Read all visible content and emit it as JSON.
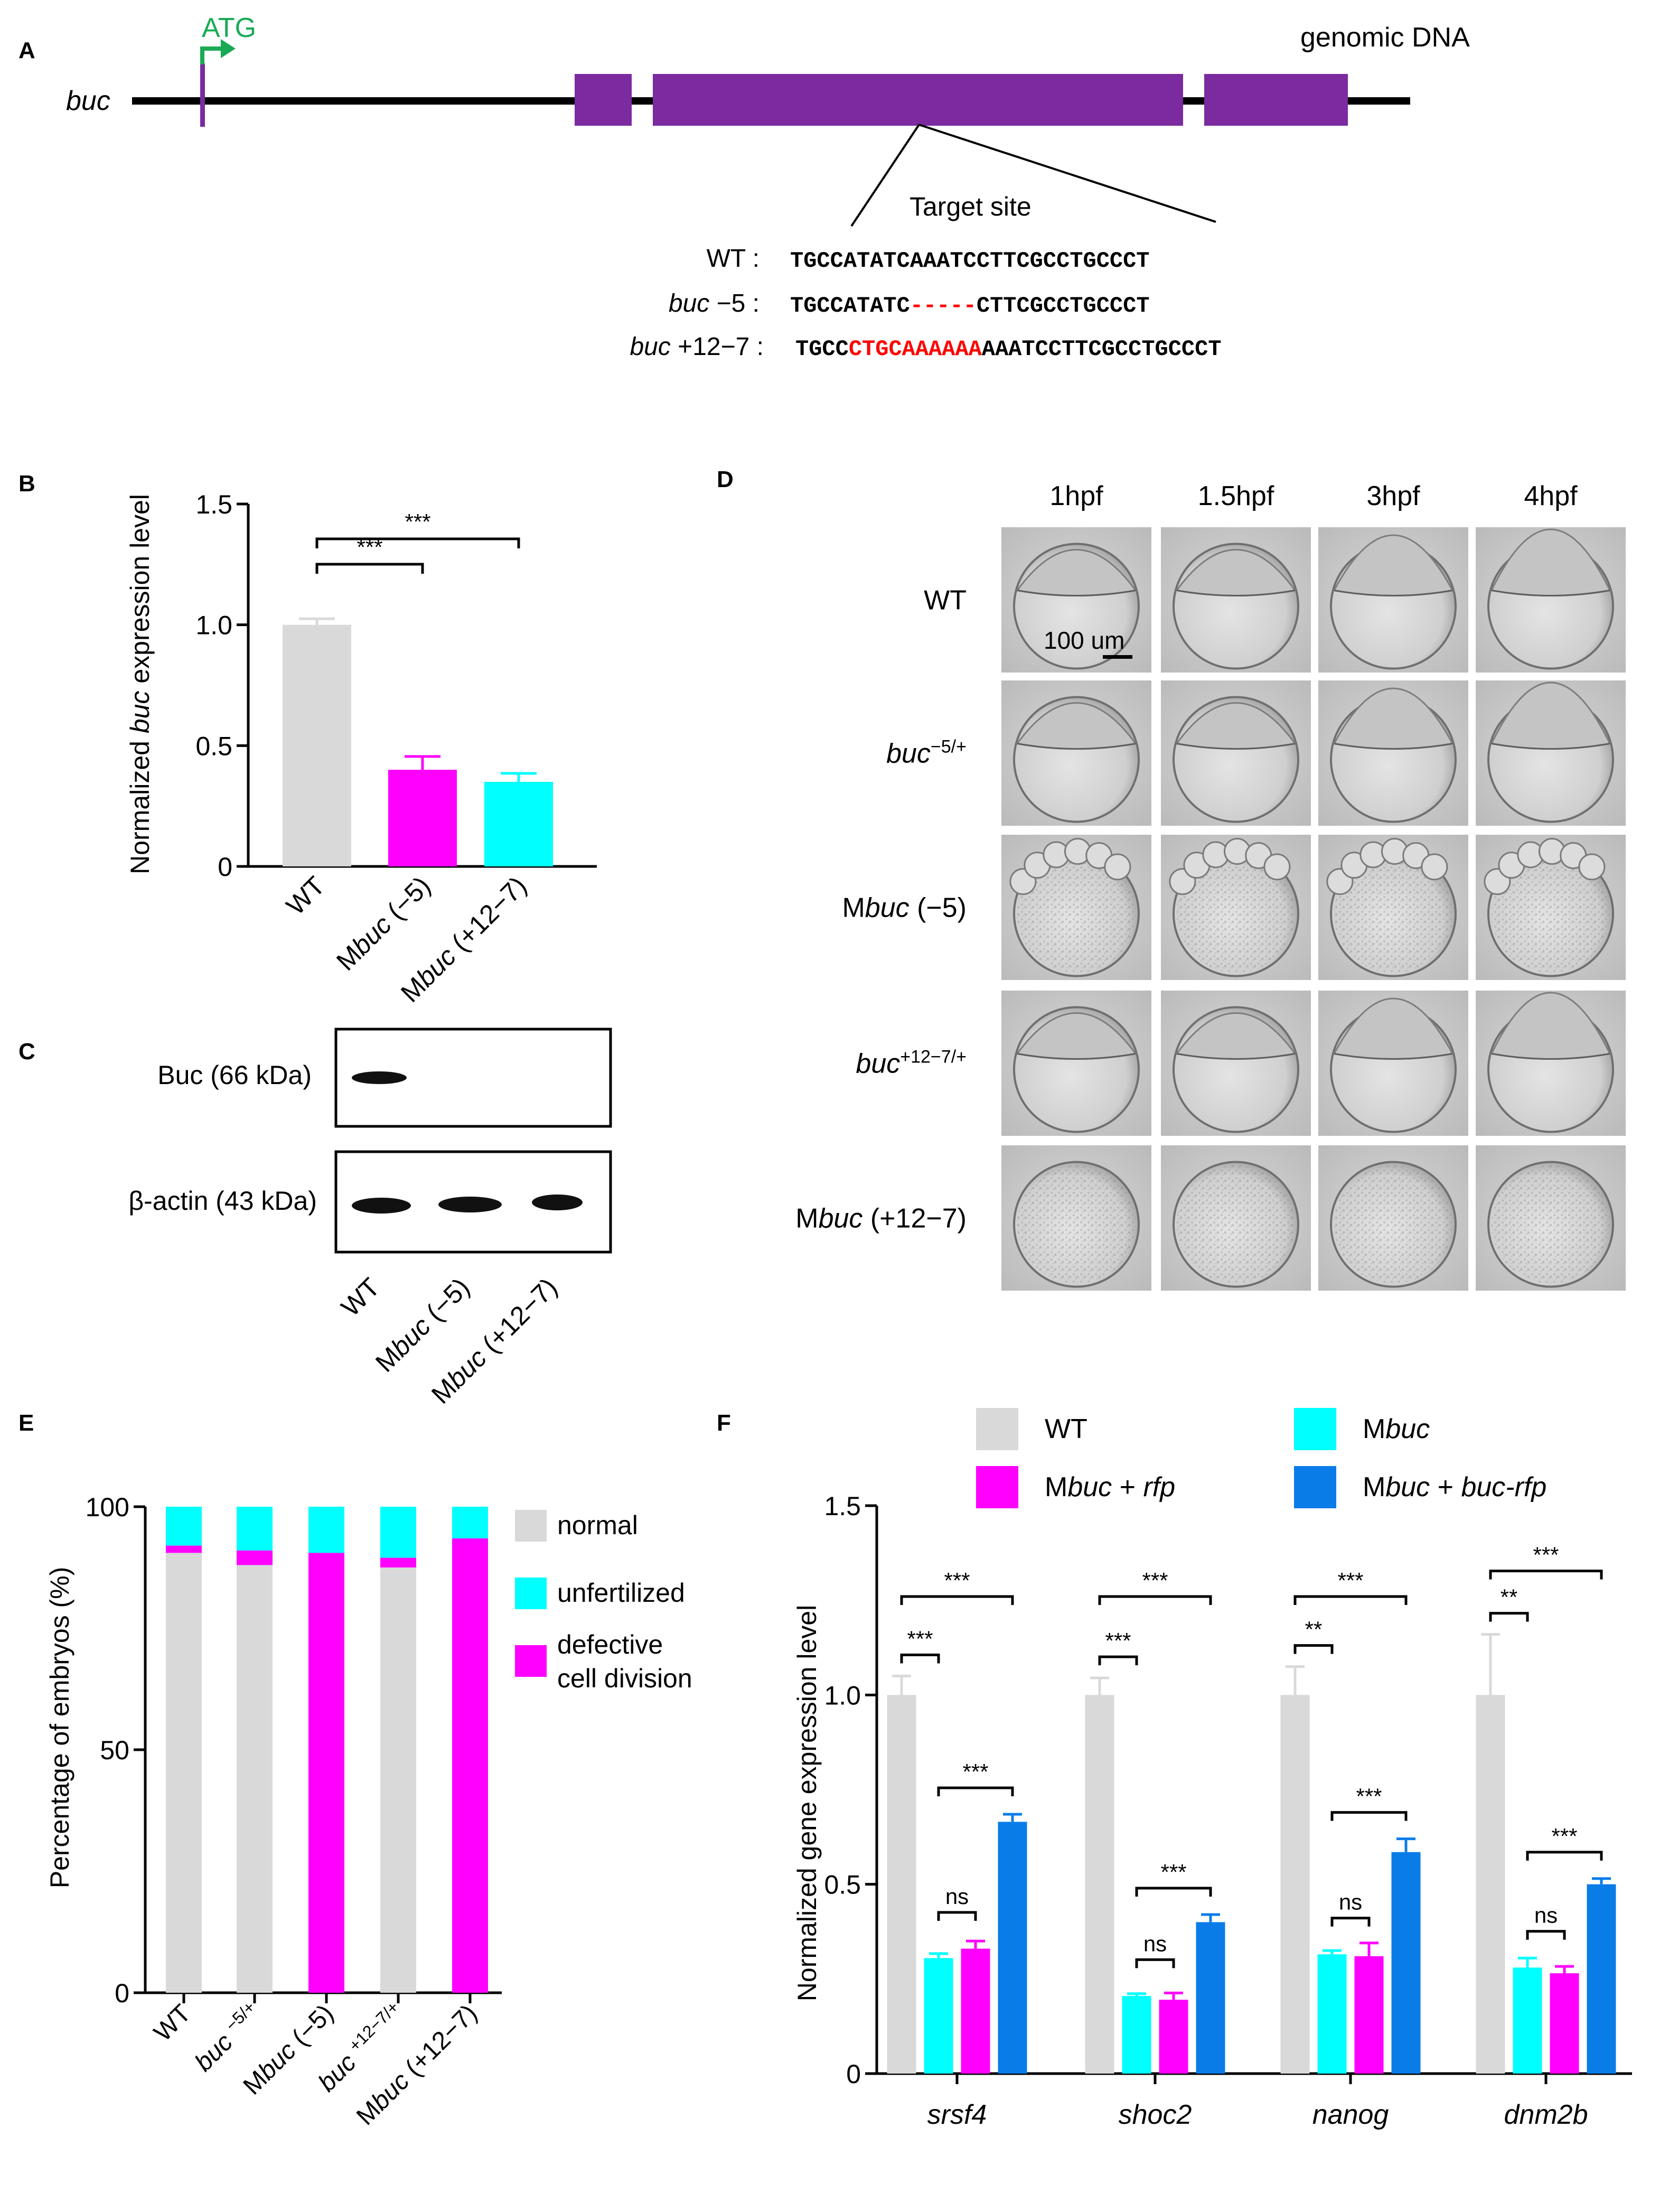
{
  "panels": {
    "A": "A",
    "B": "B",
    "C": "C",
    "D": "D",
    "E": "E",
    "F": "F"
  },
  "colors": {
    "wt": "#d9d9d9",
    "mbuc": "#ff00ff",
    "rescue_cyan": "#00ffff",
    "blue": "#0a7ce8",
    "exon": "#7b2aa0",
    "atg": "#1aaa55",
    "del": "#ff0000",
    "black": "#000000"
  },
  "panelA": {
    "gene_label": "buc",
    "atg_label": "ATG",
    "genomic_label": "genomic DNA",
    "target_label": "Target site",
    "rows": [
      {
        "label": "WT :",
        "seq_pre": "TGCCATATCAAATCCTTCGCCTGCCCT",
        "seq_mut": "",
        "seq_post": ""
      },
      {
        "label_gene": "buc",
        "label_rest": " −5 :",
        "seq_pre": "TGCCATATC",
        "seq_mut": "-----",
        "seq_post": "CTTCGCCTGCCCT"
      },
      {
        "label_gene": "buc",
        "label_rest": " +12−7 :",
        "seq_pre": "TGCC",
        "seq_mut": "CTGCAAAAAA",
        "seq_post": "AAATCCTTCGCCTGCCCT"
      }
    ]
  },
  "chart_data": [
    {
      "id": "B",
      "type": "bar",
      "ylabel_pre": "Normalized ",
      "ylabel_gene": "buc",
      "ylabel_post": " expression level",
      "ylim": [
        0,
        1.5
      ],
      "yticks": [
        "0",
        "0.5",
        "1.0",
        "1.5"
      ],
      "categories": [
        "WT",
        "Mbuc (−5)",
        "Mbuc (+12−7)"
      ],
      "cat_parts": [
        {
          "pre": "",
          "gene": "WT",
          "post": ""
        },
        {
          "pre": "M",
          "gene": "buc",
          "post": " (−5)"
        },
        {
          "pre": "M",
          "gene": "buc",
          "post": " (+12−7)"
        }
      ],
      "values": [
        1.0,
        0.4,
        0.35
      ],
      "errors": [
        0.025,
        0.055,
        0.035
      ],
      "significance": [
        {
          "from": 0,
          "to": 1,
          "label": "***"
        },
        {
          "from": 0,
          "to": 2,
          "label": "***"
        }
      ]
    },
    {
      "id": "E",
      "type": "stacked-bar",
      "ylabel": "Percentage of embryos (%)",
      "ylim": [
        0,
        100
      ],
      "yticks": [
        "0",
        "50",
        "100"
      ],
      "categories": [
        "WT",
        "buc −5/+",
        "Mbuc (−5)",
        "buc +12−7/+",
        "Mbuc (+12−7)"
      ],
      "cat_parts": [
        {
          "pre": "WT",
          "sup": ""
        },
        {
          "pre": "buc ",
          "sup": "−5/+"
        },
        {
          "pre": "Mbuc (−5)",
          "sup": ""
        },
        {
          "pre": "buc ",
          "sup": "+12−7/+"
        },
        {
          "pre": "Mbuc (+12−7)",
          "sup": ""
        }
      ],
      "series": [
        {
          "name": "normal",
          "values": [
            90.5,
            88,
            0,
            87.5,
            0
          ]
        },
        {
          "name": "defective cell division",
          "values": [
            1.5,
            3,
            90.5,
            2,
            93.5
          ]
        },
        {
          "name": "unfertilized",
          "values": [
            8,
            9,
            9.5,
            10.5,
            6.5
          ]
        }
      ],
      "legend": [
        "normal",
        "unfertilized",
        "defective cell division"
      ]
    },
    {
      "id": "F",
      "type": "grouped-bar",
      "ylabel": "Normalized gene expression level",
      "ylim": [
        0,
        1.5
      ],
      "yticks": [
        "0",
        "0.5",
        "1.0",
        "1.5"
      ],
      "categories": [
        "srsf4",
        "shoc2",
        "nanog",
        "dnm2b"
      ],
      "legend": [
        {
          "pre": "WT",
          "gene": "",
          "post": ""
        },
        {
          "pre": "M",
          "gene": "buc",
          "post": ""
        },
        {
          "pre": "M",
          "gene": "buc",
          "post": " + ",
          "gene2": "rfp"
        },
        {
          "pre": "M",
          "gene": "buc",
          "post": " + ",
          "gene2": "buc-rfp"
        }
      ],
      "series": [
        {
          "name": "WT",
          "values": [
            1.0,
            1.0,
            1.0,
            1.0
          ],
          "errors": [
            0.05,
            0.045,
            0.075,
            0.16
          ]
        },
        {
          "name": "Mbuc",
          "values": [
            0.305,
            0.205,
            0.315,
            0.28
          ],
          "errors": [
            0.012,
            0.006,
            0.01,
            0.025
          ]
        },
        {
          "name": "Mbuc + rfp",
          "values": [
            0.33,
            0.195,
            0.31,
            0.265
          ],
          "errors": [
            0.02,
            0.018,
            0.035,
            0.018
          ]
        },
        {
          "name": "Mbuc + buc-rfp",
          "values": [
            0.665,
            0.4,
            0.585,
            0.5
          ],
          "errors": [
            0.02,
            0.02,
            0.035,
            0.015
          ]
        }
      ],
      "significance": [
        {
          "label": "***"
        },
        {
          "label": "***"
        },
        {
          "label": "***"
        },
        {
          "label": "ns"
        },
        {
          "label": "***"
        },
        {
          "label": "***"
        },
        {
          "label": "***"
        },
        {
          "label": "ns"
        },
        {
          "label": "**"
        },
        {
          "label": "***"
        },
        {
          "label": "***"
        },
        {
          "label": "ns"
        },
        {
          "label": "**"
        },
        {
          "label": "***"
        },
        {
          "label": "***"
        },
        {
          "label": "ns"
        }
      ]
    }
  ],
  "panelC": {
    "rows": [
      {
        "label": "Buc (66 kDa)"
      },
      {
        "label": "β-actin (43 kDa)"
      }
    ],
    "lanes": [
      {
        "pre": "WT",
        "gene": "",
        "post": ""
      },
      {
        "pre": "M",
        "gene": "buc",
        "post": " (−5)"
      },
      {
        "pre": "M",
        "gene": "buc",
        "post": " (+12−7)"
      }
    ]
  },
  "panelD": {
    "columns": [
      "1hpf",
      "1.5hpf",
      "3hpf",
      "4hpf"
    ],
    "rows": [
      {
        "pre": "WT",
        "gene": "",
        "post": "",
        "sup": ""
      },
      {
        "pre": "",
        "gene": "buc",
        "post": "",
        "sup": "−5/+"
      },
      {
        "pre": "M",
        "gene": "buc",
        "post": " (−5)",
        "sup": ""
      },
      {
        "pre": "",
        "gene": "buc",
        "post": "",
        "sup": "+12−7/+"
      },
      {
        "pre": "M",
        "gene": "buc",
        "post": " (+12−7)",
        "sup": ""
      }
    ],
    "scale_label": "100 um"
  }
}
